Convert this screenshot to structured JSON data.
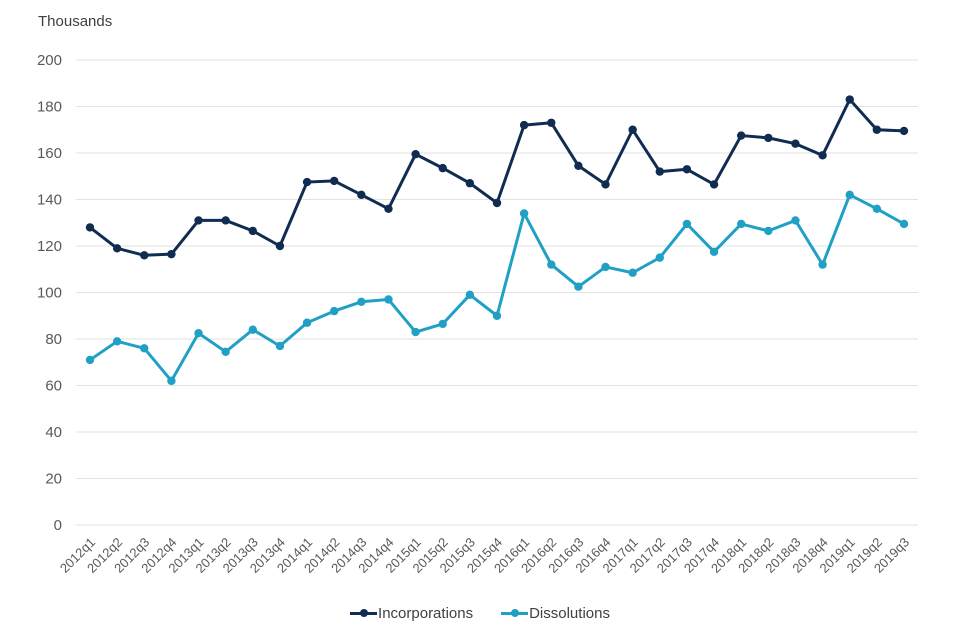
{
  "axis_unit_label": "Thousands",
  "styles": {
    "grid_color": "#e2e2e2",
    "tick_label_color": "#595959",
    "axis_unit_color": "#404040",
    "legend_text_color": "#404040",
    "background": "#ffffff"
  },
  "chart_data": {
    "type": "line",
    "title": "",
    "xlabel": "",
    "ylabel": "Thousands",
    "ylim": [
      0,
      200
    ],
    "ytick_step": 20,
    "grid": true,
    "legend_position": "bottom",
    "x_label_rotation_deg": -45,
    "categories": [
      "2012q1",
      "2012q2",
      "2012q3",
      "2012q4",
      "2013q1",
      "2013q2",
      "2013q3",
      "2013q4",
      "2014q1",
      "2014q2",
      "2014q3",
      "2014q4",
      "2015q1",
      "2015q2",
      "2015q3",
      "2015q4",
      "2016q1",
      "2016q2",
      "2016q3",
      "2016q4",
      "2017q1",
      "2017q2",
      "2017q3",
      "2017q4",
      "2018q1",
      "2018q2",
      "2018q3",
      "2018q4",
      "2019q1",
      "2019q2",
      "2019q3"
    ],
    "series": [
      {
        "name": "Incorporations",
        "color": "#112c51",
        "values": [
          128,
          119,
          116,
          116.5,
          131,
          131,
          126.5,
          120,
          147.5,
          148,
          142,
          136,
          159.5,
          153.5,
          147,
          138.5,
          172,
          173,
          154.5,
          146.5,
          170,
          152,
          153,
          146.5,
          167.5,
          166.5,
          164,
          159,
          183,
          170,
          169.5
        ]
      },
      {
        "name": "Dissolutions",
        "color": "#1fa0c4",
        "values": [
          71,
          79,
          76,
          62,
          82.5,
          74.5,
          84,
          77,
          87,
          92,
          96,
          97,
          83,
          86.5,
          99,
          90,
          134,
          112,
          102.5,
          111,
          108.5,
          115,
          129.5,
          117.5,
          129.5,
          126.5,
          131,
          112,
          142,
          136,
          129.5
        ]
      }
    ]
  }
}
